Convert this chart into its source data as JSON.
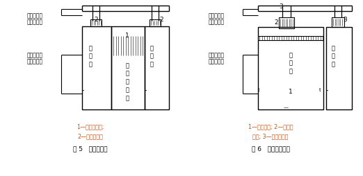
{
  "fig_width": 5.22,
  "fig_height": 2.54,
  "dpi": 100,
  "bg_color": "#ffffff",
  "line_color": "#000000",
  "caption_color": "#c8500a",
  "fig5_label": "图 5   设围档送风",
  "fig6_label": "图 6   格栅地板回风",
  "fig5_legend1": "1—垂直层流罩;",
  "fig5_legend2": "2—高效送风口",
  "fig6_legend1": "1—格栅地板; 2—风机过",
  "fig6_legend2": "滤器; 3—高效送风口",
  "label_send1": "接组合式空",
  "label_send2": "调器送风管",
  "label_return1": "接组合式空",
  "label_return2": "调器回风管"
}
